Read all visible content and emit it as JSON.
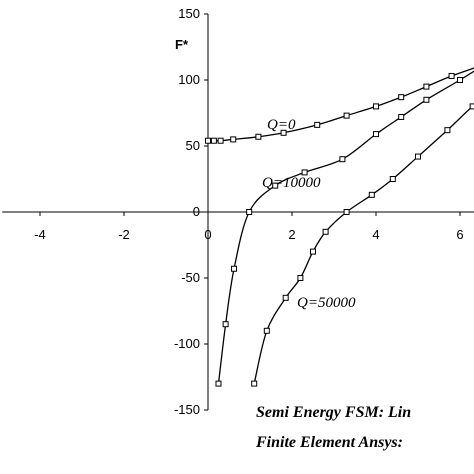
{
  "chart_data": {
    "type": "line",
    "ylabel": "F*",
    "xlabel": "",
    "xlim": [
      -4.9,
      6.6
    ],
    "ylim": [
      -150,
      150
    ],
    "x_ticks": [
      -4,
      -2,
      0,
      2,
      4,
      6
    ],
    "y_ticks": [
      150,
      100,
      50,
      0,
      -50,
      -100,
      -150
    ],
    "y_tick_labels": [
      "150",
      "100",
      "50",
      "0",
      "-50",
      "-100",
      "-150"
    ],
    "x_tick_labels": [
      "-4",
      "-2",
      "0",
      "2",
      "4",
      "6"
    ],
    "grid": false,
    "marker": "hollow-square",
    "series": [
      {
        "name": "Q=0",
        "x": [
          0.0,
          0.14,
          0.3,
          0.6,
          1.2,
          1.8,
          2.6,
          3.3,
          4.0,
          4.6,
          5.2,
          5.8,
          6.6
        ],
        "y": [
          54,
          54,
          54,
          55,
          57,
          60,
          66,
          73,
          80,
          87,
          95,
          103,
          112
        ]
      },
      {
        "name": "Q=10000",
        "x": [
          0.25,
          0.42,
          0.62,
          0.98,
          1.6,
          2.3,
          3.2,
          4.0,
          4.6,
          5.2,
          6.0,
          6.6
        ],
        "y": [
          -130,
          -85,
          -43,
          0,
          20,
          30,
          40,
          59,
          72,
          85,
          100,
          112
        ]
      },
      {
        "name": "Q=50000",
        "x": [
          1.1,
          1.4,
          1.85,
          2.2,
          2.5,
          2.8,
          3.3,
          3.9,
          4.4,
          5.0,
          5.7,
          6.3,
          6.6
        ],
        "y": [
          -130,
          -90,
          -65,
          -50,
          -30,
          -15,
          0,
          13,
          25,
          42,
          62,
          80,
          86
        ]
      }
    ],
    "annotations": [
      "Q=0",
      "Q=10000",
      "Q=50000"
    ],
    "legend": [
      "Semi Energy FSM:  Lin",
      "Finite Element Ansys:"
    ]
  }
}
